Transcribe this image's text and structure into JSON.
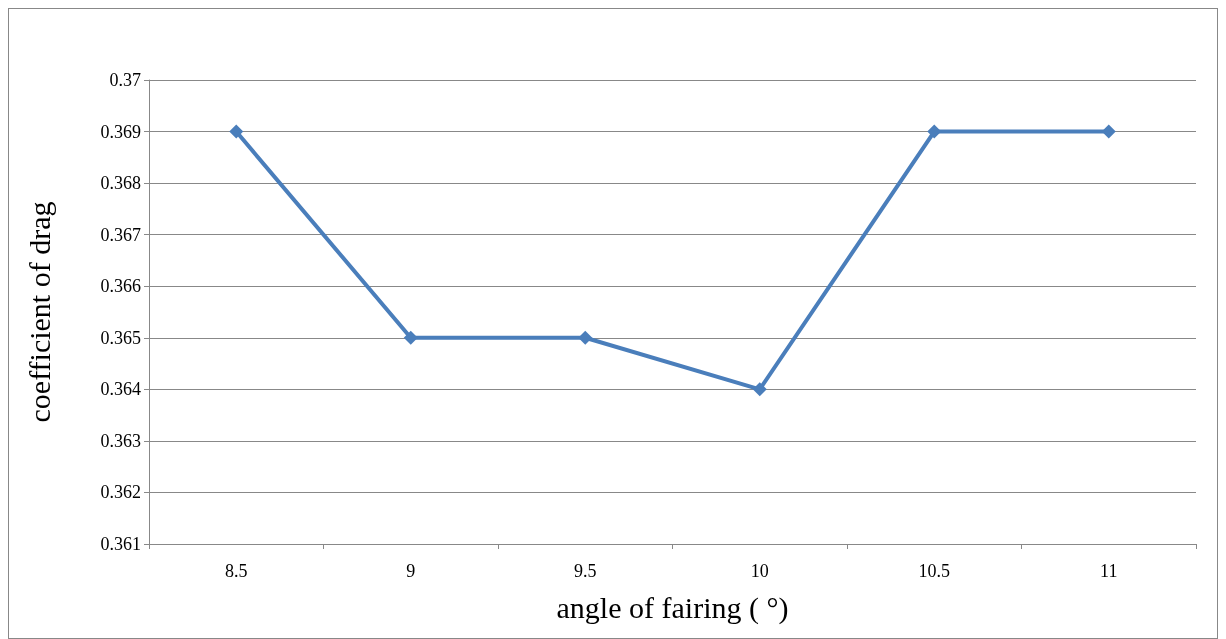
{
  "chart_data": {
    "type": "line",
    "xlabel": "angle of fairing ( °)",
    "ylabel": "coefficient of drag",
    "categories": [
      "8.5",
      "9",
      "9.5",
      "10",
      "10.5",
      "11"
    ],
    "series": [
      {
        "color": "#4a7ebb",
        "values": [
          0.369,
          0.365,
          0.365,
          0.364,
          0.369,
          0.369
        ]
      }
    ],
    "ylim": [
      0.361,
      0.37
    ],
    "yticks": [
      0.361,
      0.362,
      0.363,
      0.364,
      0.365,
      0.366,
      0.367,
      0.368,
      0.369,
      0.37
    ],
    "grid": "y",
    "marker": "diamond",
    "line_style": "solid"
  }
}
